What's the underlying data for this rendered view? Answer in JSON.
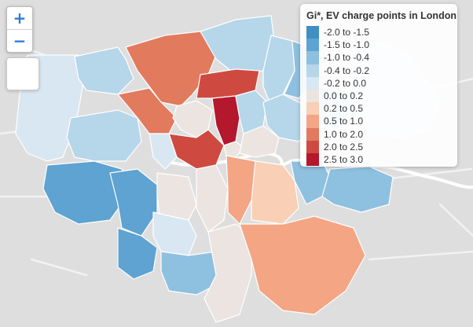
{
  "map": {
    "zoom_in_label": "+",
    "zoom_out_label": "−"
  },
  "legend": {
    "title": "Gi*, EV charge points in London",
    "items": [
      {
        "label": "-2.0 to -1.5",
        "color": "#3f8fc4"
      },
      {
        "label": "-1.5 to -1.0",
        "color": "#5ea3d1"
      },
      {
        "label": "-1.0 to -0.4",
        "color": "#8ec0e0"
      },
      {
        "label": "-0.4 to -0.2",
        "color": "#b6d6ea"
      },
      {
        "label": "-0.2 to 0.0",
        "color": "#d8e7f2"
      },
      {
        "label": "0.0 to 0.2",
        "color": "#ebe4e0"
      },
      {
        "label": "0.2 to 0.5",
        "color": "#f9cfb5"
      },
      {
        "label": "0.5 to 1.0",
        "color": "#f3a584"
      },
      {
        "label": "1.0 to 2.0",
        "color": "#e27a5e"
      },
      {
        "label": "2.0 to 2.5",
        "color": "#ce4a40"
      },
      {
        "label": "2.5 to 3.0",
        "color": "#b3182c"
      }
    ]
  }
}
